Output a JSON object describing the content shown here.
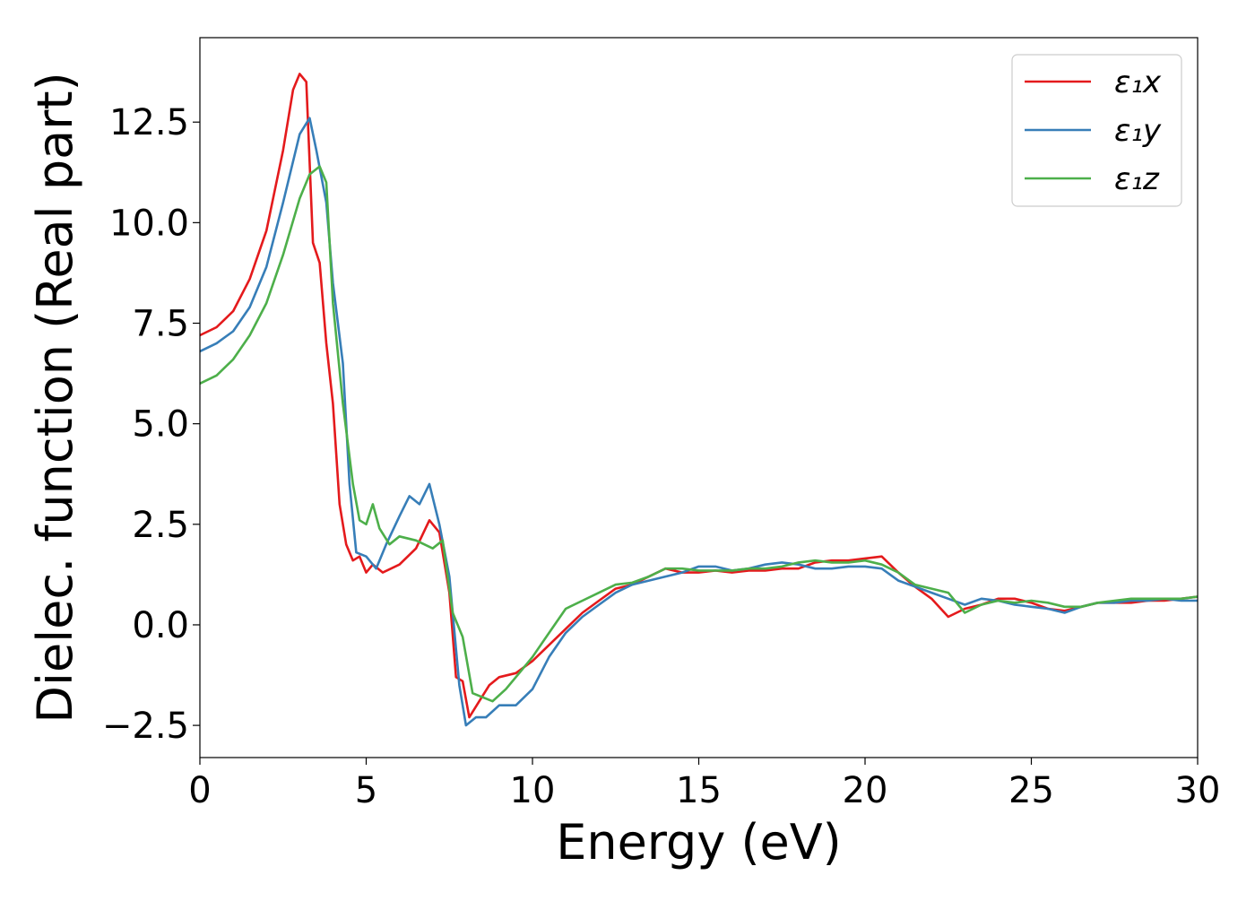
{
  "chart_data": {
    "type": "line",
    "title": "",
    "xlabel": "Energy (eV)",
    "ylabel": "Dielec. function (Real part)",
    "xlim": [
      0,
      30
    ],
    "ylim": [
      -3.3,
      14.6
    ],
    "xticks": [
      0,
      5,
      10,
      15,
      20,
      25,
      30
    ],
    "xtick_labels": [
      "0",
      "5",
      "10",
      "15",
      "20",
      "25",
      "30"
    ],
    "yticks": [
      -2.5,
      0.0,
      2.5,
      5.0,
      7.5,
      10.0,
      12.5
    ],
    "ytick_labels": [
      "−2.5",
      "0.0",
      "2.5",
      "5.0",
      "7.5",
      "10.0",
      "12.5"
    ],
    "grid": false,
    "legend_position": "top-right",
    "series": [
      {
        "name": "ε₁x",
        "color": "#e41a1c",
        "x": [
          0,
          0.5,
          1,
          1.5,
          2,
          2.5,
          2.8,
          3.0,
          3.2,
          3.4,
          3.6,
          3.8,
          4.0,
          4.2,
          4.4,
          4.6,
          4.8,
          5.0,
          5.2,
          5.5,
          6.0,
          6.5,
          6.9,
          7.2,
          7.5,
          7.7,
          7.9,
          8.1,
          8.4,
          8.7,
          9.0,
          9.5,
          10,
          10.5,
          11,
          11.5,
          12,
          12.5,
          13,
          13.5,
          14,
          14.5,
          15,
          15.5,
          16,
          16.5,
          17,
          17.5,
          18,
          18.5,
          19,
          19.5,
          20,
          20.5,
          21,
          21.5,
          22,
          22.5,
          23,
          23.5,
          24,
          24.5,
          25,
          25.5,
          26,
          26.5,
          27,
          27.5,
          28,
          28.5,
          29,
          29.5,
          30
        ],
        "y": [
          7.2,
          7.4,
          7.8,
          8.6,
          9.8,
          11.8,
          13.3,
          13.7,
          13.5,
          9.5,
          9.0,
          7.0,
          5.5,
          3.0,
          2.0,
          1.6,
          1.7,
          1.3,
          1.5,
          1.3,
          1.5,
          1.9,
          2.6,
          2.3,
          0.8,
          -1.3,
          -1.4,
          -2.3,
          -1.9,
          -1.5,
          -1.3,
          -1.2,
          -0.9,
          -0.5,
          -0.1,
          0.3,
          0.6,
          0.9,
          1.0,
          1.2,
          1.4,
          1.3,
          1.3,
          1.35,
          1.3,
          1.35,
          1.35,
          1.4,
          1.4,
          1.55,
          1.6,
          1.6,
          1.65,
          1.7,
          1.3,
          0.95,
          0.65,
          0.2,
          0.4,
          0.5,
          0.65,
          0.65,
          0.55,
          0.4,
          0.35,
          0.45,
          0.55,
          0.55,
          0.55,
          0.6,
          0.6,
          0.65,
          0.7
        ]
      },
      {
        "name": "ε₁y",
        "color": "#377eb8",
        "x": [
          0,
          0.5,
          1,
          1.5,
          2,
          2.5,
          3.0,
          3.3,
          3.5,
          3.8,
          4.0,
          4.3,
          4.5,
          4.7,
          5.0,
          5.3,
          5.6,
          6.0,
          6.3,
          6.6,
          6.9,
          7.2,
          7.5,
          7.8,
          8.0,
          8.3,
          8.6,
          9.0,
          9.5,
          10,
          10.5,
          11,
          11.5,
          12,
          12.5,
          13,
          13.5,
          14,
          14.5,
          15,
          15.5,
          16,
          16.5,
          17,
          17.5,
          18,
          18.5,
          19,
          19.5,
          20,
          20.5,
          21,
          21.5,
          22,
          22.5,
          23,
          23.5,
          24,
          24.5,
          25,
          25.5,
          26,
          26.5,
          27,
          27.5,
          28,
          28.5,
          29,
          29.5,
          30
        ],
        "y": [
          6.8,
          7.0,
          7.3,
          7.9,
          8.9,
          10.5,
          12.2,
          12.6,
          11.8,
          10.5,
          8.5,
          6.5,
          3.5,
          1.8,
          1.7,
          1.4,
          2.0,
          2.7,
          3.2,
          3.0,
          3.5,
          2.5,
          1.2,
          -1.5,
          -2.5,
          -2.3,
          -2.3,
          -2.0,
          -2.0,
          -1.6,
          -0.8,
          -0.2,
          0.2,
          0.5,
          0.8,
          1.0,
          1.1,
          1.2,
          1.3,
          1.45,
          1.45,
          1.35,
          1.4,
          1.5,
          1.55,
          1.5,
          1.4,
          1.4,
          1.45,
          1.45,
          1.4,
          1.1,
          0.95,
          0.8,
          0.65,
          0.5,
          0.65,
          0.6,
          0.5,
          0.45,
          0.4,
          0.3,
          0.45,
          0.55,
          0.55,
          0.6,
          0.6,
          0.65,
          0.6,
          0.6
        ]
      },
      {
        "name": "ε₁z",
        "color": "#4daf4a",
        "x": [
          0,
          0.5,
          1,
          1.5,
          2,
          2.5,
          3.0,
          3.3,
          3.6,
          3.8,
          4.0,
          4.3,
          4.6,
          4.8,
          5.0,
          5.2,
          5.4,
          5.7,
          6.0,
          6.5,
          7.0,
          7.3,
          7.6,
          7.9,
          8.2,
          8.5,
          8.8,
          9.2,
          9.6,
          10,
          10.5,
          11,
          11.5,
          12,
          12.5,
          13,
          13.5,
          14,
          14.5,
          15,
          15.5,
          16,
          16.5,
          17,
          17.5,
          18,
          18.5,
          19,
          19.5,
          20,
          20.5,
          21,
          21.5,
          22,
          22.5,
          23,
          23.5,
          24,
          24.5,
          25,
          25.5,
          26,
          26.5,
          27,
          27.5,
          28,
          28.5,
          29,
          29.5,
          30
        ],
        "y": [
          6.0,
          6.2,
          6.6,
          7.2,
          8.0,
          9.2,
          10.6,
          11.2,
          11.4,
          11.0,
          8.0,
          5.5,
          3.5,
          2.6,
          2.5,
          3.0,
          2.4,
          2.0,
          2.2,
          2.1,
          1.9,
          2.1,
          0.3,
          -0.3,
          -1.7,
          -1.8,
          -1.9,
          -1.6,
          -1.2,
          -0.8,
          -0.2,
          0.4,
          0.6,
          0.8,
          1.0,
          1.05,
          1.2,
          1.4,
          1.4,
          1.35,
          1.35,
          1.35,
          1.4,
          1.4,
          1.45,
          1.55,
          1.6,
          1.55,
          1.55,
          1.6,
          1.5,
          1.3,
          1.0,
          0.9,
          0.8,
          0.3,
          0.5,
          0.6,
          0.55,
          0.6,
          0.55,
          0.45,
          0.45,
          0.55,
          0.6,
          0.65,
          0.65,
          0.65,
          0.65,
          0.7
        ]
      }
    ]
  }
}
